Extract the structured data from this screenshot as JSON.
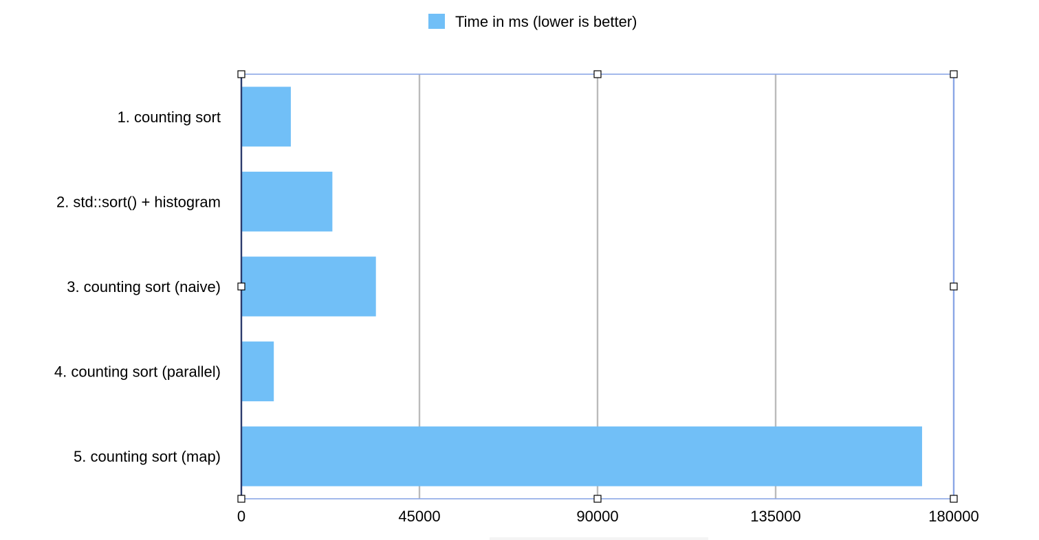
{
  "colors": {
    "bar": "#71bff7",
    "grid": "#bbbbbb",
    "axis": "#2b3a6b",
    "selection_frame": "#8aa6e6"
  },
  "chart_data": {
    "type": "bar",
    "orientation": "horizontal",
    "categories": [
      "1. counting sort",
      "2. std::sort() + histogram",
      "3. counting sort (naive)",
      "4. counting sort (parallel)",
      "5. counting sort (map)"
    ],
    "series": [
      {
        "name": "Time in ms (lower is better)",
        "values": [
          12500,
          23000,
          34000,
          8200,
          172000
        ]
      }
    ],
    "xlim": [
      0,
      180000
    ],
    "xticks": [
      "0",
      "45000",
      "90000",
      "135000",
      "180000"
    ],
    "title": "",
    "xlabel": "",
    "ylabel": "",
    "grid": "vertical",
    "legend_position": "top-center"
  }
}
